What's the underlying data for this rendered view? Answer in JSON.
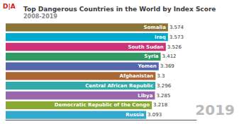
{
  "chart_data": {
    "type": "bar",
    "orientation": "horizontal",
    "title": "Top Dangerous Countries in the World by Index Score",
    "subtitle": "2008-2019",
    "annotations": [
      "D|A",
      "2019"
    ],
    "categories": [
      "Somalia",
      "Iraq",
      "South Sudan",
      "Syria",
      "Yemen",
      "Afghanistan",
      "Central African Republic",
      "Libya",
      "Democratic Republic of the Congo",
      "Russia"
    ],
    "values": [
      3.574,
      3.573,
      3.526,
      3.412,
      3.369,
      3.3,
      3.296,
      3.285,
      3.218,
      3.093
    ],
    "colors": [
      "#8B7536",
      "#00AACC",
      "#CC3377",
      "#339966",
      "#5566AA",
      "#AA6633",
      "#33AAAA",
      "#9966AA",
      "#88AA33",
      "#33AACC"
    ],
    "xlim": [
      0,
      4.2
    ],
    "data_labels": true,
    "tick_labels": false,
    "grid": false
  }
}
